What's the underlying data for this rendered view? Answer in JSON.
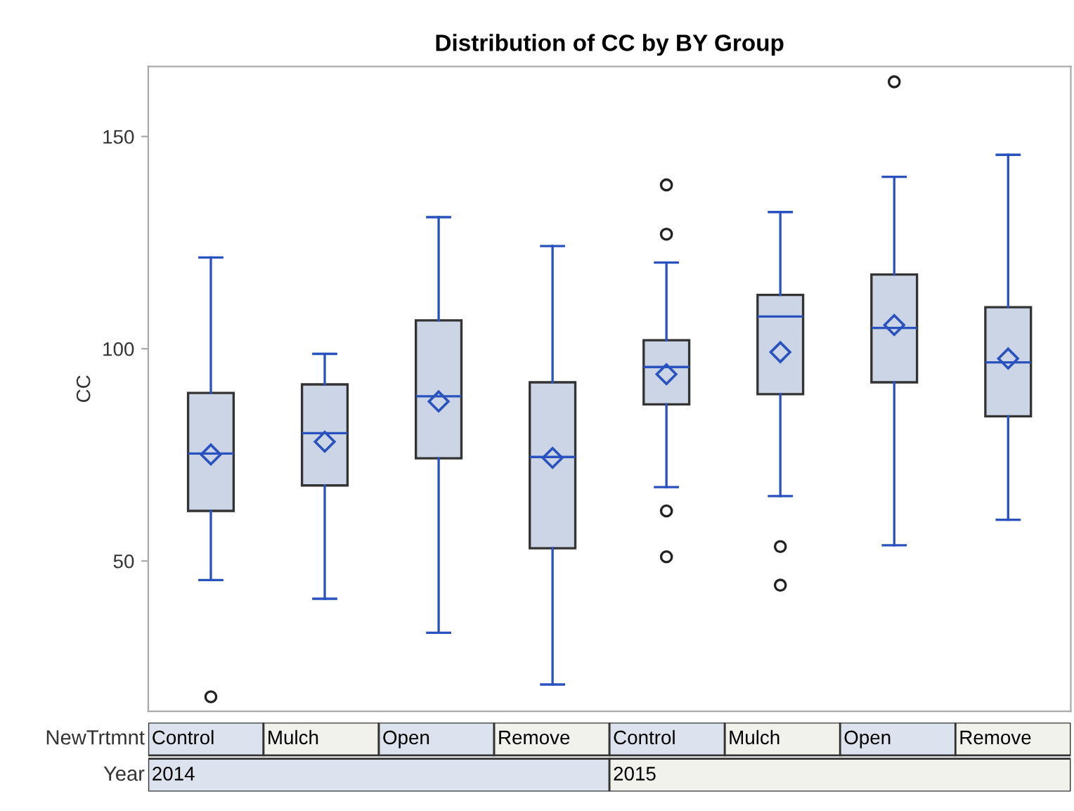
{
  "chart_data": {
    "type": "box",
    "title": "Distribution of CC by BY Group",
    "ylabel": "CC",
    "xlabel": "NewTrtmnt",
    "categories": [
      "Control",
      "Mulch",
      "Open",
      "Remove",
      "Control",
      "Mulch",
      "Open",
      "Remove"
    ],
    "annotations": [
      "Year",
      "2014",
      "2015"
    ],
    "color": "#cbd5e5",
    "boxes": [
      {
        "low": 45.5,
        "q1": 61.8,
        "median": 75.3,
        "q3": 89.6,
        "high": 121.5,
        "mean": 75.1,
        "outliers": [
          18.0
        ]
      },
      {
        "low": 41.1,
        "q1": 67.8,
        "median": 80.1,
        "q3": 91.6,
        "high": 98.8,
        "mean": 78.1
      },
      {
        "low": 33.1,
        "q1": 74.2,
        "median": 88.8,
        "q3": 106.7,
        "high": 131.0,
        "mean": 87.6
      },
      {
        "low": 20.9,
        "q1": 53.0,
        "median": 74.5,
        "q3": 92.1,
        "high": 124.2,
        "mean": 74.3
      },
      {
        "low": 67.4,
        "q1": 86.9,
        "median": 95.7,
        "q3": 102.0,
        "high": 120.3,
        "mean": 94.0,
        "outliers": [
          138.6,
          127.0,
          61.8,
          51.0
        ]
      },
      {
        "low": 65.3,
        "q1": 89.3,
        "median": 107.6,
        "q3": 112.7,
        "high": 132.2,
        "mean": 99.2,
        "outliers": [
          53.4,
          44.3
        ]
      },
      {
        "low": 53.7,
        "q1": 92.1,
        "median": 104.9,
        "q3": 117.5,
        "high": 140.5,
        "mean": 105.6,
        "outliers": [
          162.9
        ]
      },
      {
        "low": 59.7,
        "q1": 84.1,
        "median": 96.8,
        "q3": 109.8,
        "high": 145.7,
        "mean": 97.7
      }
    ],
    "ylim": [
      14.6,
      166.5
    ],
    "yticks": [
      50,
      100,
      150
    ],
    "grid": false
  }
}
